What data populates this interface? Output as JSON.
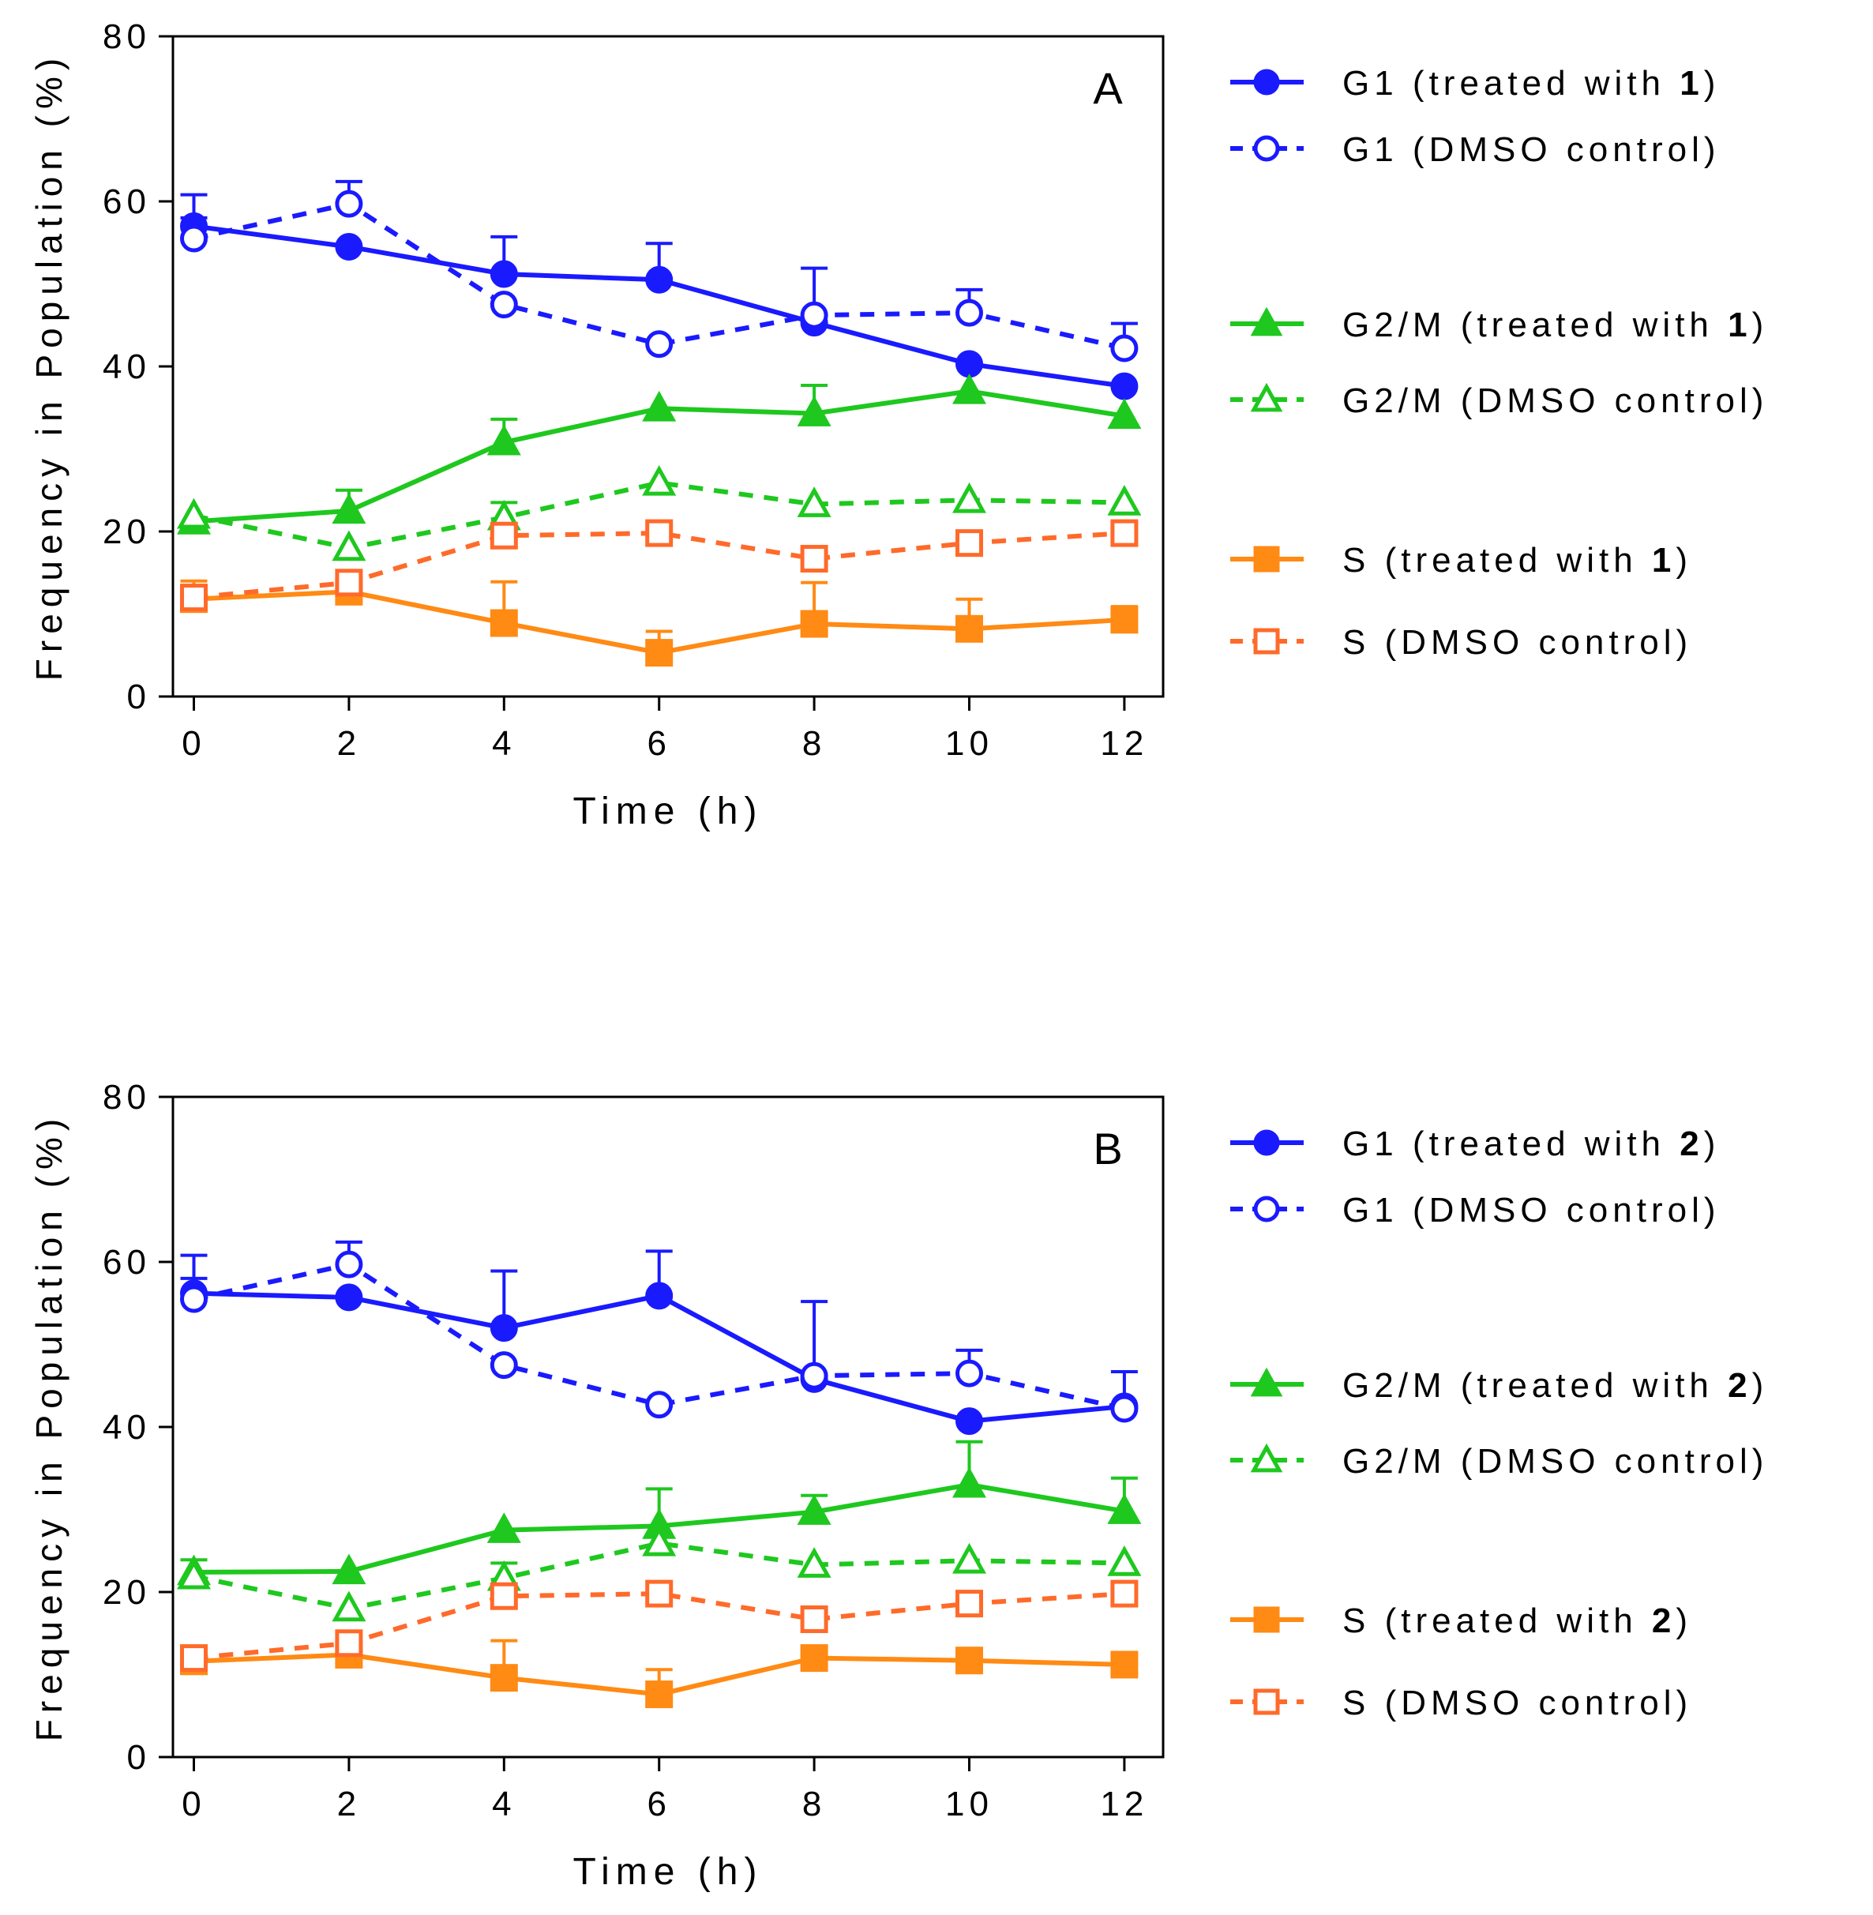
{
  "chart_data": [
    {
      "type": "line",
      "label": "A",
      "x_label": "Time (h)",
      "y_label": "Frequency in Population (%)",
      "x": [
        0,
        2,
        4,
        6,
        8,
        10,
        12
      ],
      "xlim": [
        -0.27,
        12.5
      ],
      "xticks": [
        0,
        2,
        4,
        6,
        8,
        10,
        12
      ],
      "ylim": [
        0,
        80
      ],
      "yticks": [
        0,
        20,
        40,
        60,
        80
      ],
      "series": [
        {
          "name": "G1 (treated with 1)",
          "color": "#1a1aff",
          "marker": "circle",
          "filled": true,
          "dashed": false,
          "values": [
            57,
            54.5,
            51.2,
            50.5,
            45.3,
            40.3,
            37.6
          ],
          "errors": [
            3.8,
            null,
            4.5,
            4.4,
            6.6,
            null,
            null
          ]
        },
        {
          "name": "G1 (DMSO control)",
          "color": "#1a1aff",
          "marker": "circle",
          "filled": false,
          "dashed": true,
          "values": [
            55.5,
            59.7,
            47.5,
            42.7,
            46.2,
            46.5,
            42.2
          ],
          "errors": [
            2.5,
            2.7,
            null,
            null,
            null,
            2.8,
            3.0
          ]
        },
        {
          "name": "G2/M (treated with 1)",
          "color": "#1ec81e",
          "marker": "triangle",
          "filled": true,
          "dashed": false,
          "values": [
            21.2,
            22.5,
            30.8,
            34.9,
            34.3,
            37.0,
            34.0
          ],
          "errors": [
            null,
            2.5,
            2.8,
            null,
            3.4,
            null,
            null
          ]
        },
        {
          "name": "G2/M (DMSO control)",
          "color": "#1ec81e",
          "marker": "triangle",
          "filled": false,
          "dashed": true,
          "values": [
            21.9,
            18.0,
            21.7,
            25.9,
            23.3,
            23.8,
            23.5
          ],
          "errors": [
            null,
            null,
            1.8,
            null,
            null,
            null,
            null
          ]
        },
        {
          "name": "S (treated with 1)",
          "color": "#ff8a14",
          "marker": "square",
          "filled": true,
          "dashed": false,
          "values": [
            11.8,
            12.7,
            8.9,
            5.3,
            8.8,
            8.2,
            9.3
          ],
          "errors": [
            2.2,
            null,
            5.0,
            2.6,
            5.0,
            3.6,
            1.6
          ]
        },
        {
          "name": "S (DMSO control)",
          "color": "#ff6a2a",
          "marker": "square",
          "filled": false,
          "dashed": true,
          "values": [
            12.0,
            13.8,
            19.5,
            19.8,
            16.7,
            18.6,
            19.8
          ],
          "errors": [
            null,
            null,
            null,
            null,
            null,
            null,
            null
          ]
        }
      ]
    },
    {
      "type": "line",
      "label": "B",
      "x_label": "Time (h)",
      "y_label": "Frequency in Population (%)",
      "x": [
        0,
        2,
        4,
        6,
        8,
        10,
        12
      ],
      "xlim": [
        -0.27,
        12.5
      ],
      "xticks": [
        0,
        2,
        4,
        6,
        8,
        10,
        12
      ],
      "ylim": [
        0,
        80
      ],
      "yticks": [
        0,
        20,
        40,
        60,
        80
      ],
      "series": [
        {
          "name": "G1 (treated with 2)",
          "color": "#1a1aff",
          "marker": "circle",
          "filled": true,
          "dashed": false,
          "values": [
            56.2,
            55.7,
            52.0,
            55.9,
            45.8,
            40.7,
            42.5
          ],
          "errors": [
            4.6,
            null,
            6.9,
            5.4,
            9.4,
            null,
            4.2
          ]
        },
        {
          "name": "G1 (DMSO control)",
          "color": "#1a1aff",
          "marker": "circle",
          "filled": false,
          "dashed": true,
          "values": [
            55.5,
            59.7,
            47.5,
            42.7,
            46.2,
            46.5,
            42.2
          ],
          "errors": [
            2.5,
            2.7,
            null,
            null,
            null,
            2.8,
            null
          ]
        },
        {
          "name": "G2/M (treated with 2)",
          "color": "#1ec81e",
          "marker": "triangle",
          "filled": true,
          "dashed": false,
          "values": [
            22.4,
            22.5,
            27.5,
            28.0,
            29.7,
            33.0,
            29.8
          ],
          "errors": [
            1.5,
            null,
            null,
            4.5,
            2.0,
            5.2,
            4.0
          ]
        },
        {
          "name": "G2/M (DMSO control)",
          "color": "#1ec81e",
          "marker": "triangle",
          "filled": false,
          "dashed": true,
          "values": [
            21.9,
            18.0,
            21.7,
            25.9,
            23.3,
            23.8,
            23.5
          ],
          "errors": [
            null,
            null,
            1.8,
            null,
            null,
            null,
            null
          ]
        },
        {
          "name": "S (treated with 2)",
          "color": "#ff8a14",
          "marker": "square",
          "filled": true,
          "dashed": false,
          "values": [
            11.6,
            12.4,
            9.6,
            7.6,
            12.0,
            11.7,
            11.2
          ],
          "errors": [
            null,
            2.0,
            4.5,
            3.0,
            null,
            null,
            null
          ]
        },
        {
          "name": "S (DMSO control)",
          "color": "#ff6a2a",
          "marker": "square",
          "filled": false,
          "dashed": true,
          "values": [
            12.0,
            13.8,
            19.5,
            19.8,
            16.7,
            18.6,
            19.8
          ],
          "errors": [
            null,
            null,
            null,
            null,
            null,
            null,
            null
          ]
        }
      ]
    }
  ]
}
